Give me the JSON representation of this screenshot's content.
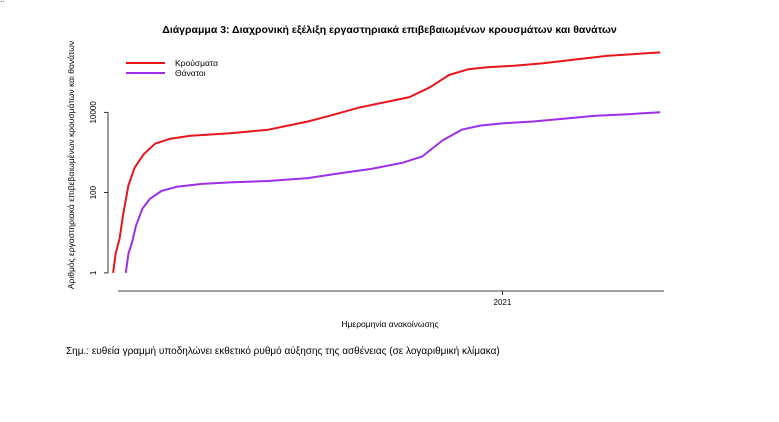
{
  "header_mark": "..",
  "chart_data": {
    "type": "line",
    "title": "Διάγραμμα 3: Διαχρονική εξέλιξη εργαστηριακά επιβεβαιωμένων κρουσμάτων και θανάτων",
    "xlabel": "Ημερομηνία ανακοίνωσης",
    "ylabel": "Αριθμός εργαστηριακά επιβεβαιωμένων κρουσμάτων και θανάτων",
    "yscale": "log10",
    "ylim": [
      0.5,
      400000
    ],
    "xlim": [
      "2020-02-26",
      "2021-05-08"
    ],
    "yticks": [
      {
        "value": 1,
        "label": "1"
      },
      {
        "value": 100,
        "label": "100"
      },
      {
        "value": 10000,
        "label": "10000"
      }
    ],
    "xticks": [
      {
        "value": "2021-01-01",
        "label": "2021"
      }
    ],
    "legend_position": "top-left",
    "grid": false,
    "colors": {
      "cases": "#e8161b",
      "deaths": "#9b30e8"
    },
    "series": [
      {
        "name": "Κρούσματα",
        "key": "cases",
        "points": [
          [
            "2020-03-01",
            1
          ],
          [
            "2020-03-03",
            3
          ],
          [
            "2020-03-06",
            7
          ],
          [
            "2020-03-09",
            30
          ],
          [
            "2020-03-13",
            150
          ],
          [
            "2020-03-18",
            420
          ],
          [
            "2020-03-25",
            900
          ],
          [
            "2020-04-03",
            1650
          ],
          [
            "2020-04-15",
            2200
          ],
          [
            "2020-05-01",
            2600
          ],
          [
            "2020-06-01",
            3000
          ],
          [
            "2020-07-01",
            3700
          ],
          [
            "2020-08-01",
            5900
          ],
          [
            "2020-08-20",
            8500
          ],
          [
            "2020-09-10",
            13000
          ],
          [
            "2020-10-01",
            18000
          ],
          [
            "2020-10-20",
            24000
          ],
          [
            "2020-11-05",
            42000
          ],
          [
            "2020-11-20",
            85000
          ],
          [
            "2020-12-05",
            118000
          ],
          [
            "2020-12-20",
            132000
          ],
          [
            "2021-01-10",
            145000
          ],
          [
            "2021-02-01",
            165000
          ],
          [
            "2021-03-01",
            210000
          ],
          [
            "2021-03-25",
            255000
          ],
          [
            "2021-05-05",
            310000
          ]
        ]
      },
      {
        "name": "Θάνατοι",
        "key": "deaths",
        "points": [
          [
            "2020-03-11",
            1
          ],
          [
            "2020-03-13",
            3
          ],
          [
            "2020-03-16",
            6
          ],
          [
            "2020-03-19",
            15
          ],
          [
            "2020-03-24",
            40
          ],
          [
            "2020-03-30",
            70
          ],
          [
            "2020-04-08",
            110
          ],
          [
            "2020-04-20",
            140
          ],
          [
            "2020-05-10",
            165
          ],
          [
            "2020-06-01",
            180
          ],
          [
            "2020-07-01",
            195
          ],
          [
            "2020-08-01",
            230
          ],
          [
            "2020-08-25",
            300
          ],
          [
            "2020-09-20",
            390
          ],
          [
            "2020-10-15",
            560
          ],
          [
            "2020-10-30",
            800
          ],
          [
            "2020-11-15",
            2000
          ],
          [
            "2020-11-30",
            3700
          ],
          [
            "2020-12-15",
            4700
          ],
          [
            "2021-01-01",
            5300
          ],
          [
            "2021-01-25",
            5900
          ],
          [
            "2021-02-20",
            7000
          ],
          [
            "2021-03-15",
            8200
          ],
          [
            "2021-04-10",
            9000
          ],
          [
            "2021-05-05",
            10000
          ]
        ]
      }
    ]
  },
  "note": "Σημ.: ευθεία γραμμή υποδηλώνει εκθετικό ρυθμό αύξησης της ασθένειας (σε λογαριθμική κλίμακα)"
}
